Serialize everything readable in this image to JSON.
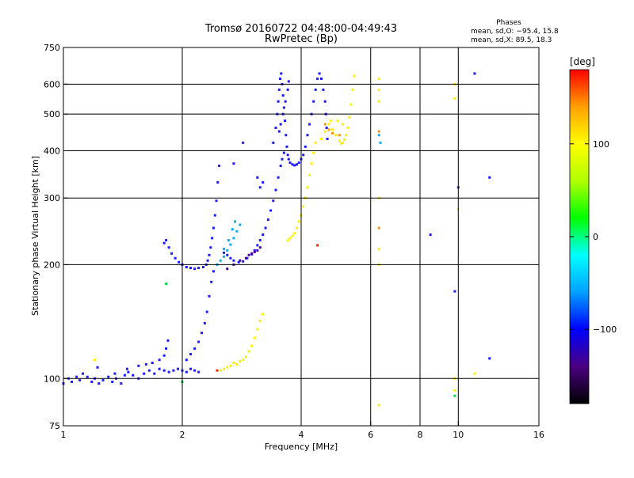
{
  "chart_data": {
    "type": "scatter",
    "title": "Tromsø 20160722 04:48:00-04:49:43",
    "subtitle": "RwPretec (Bp)",
    "xlabel": "Frequency [MHz]",
    "ylabel": "Stationary phase Virtual Height [km]",
    "x_scale": "log",
    "y_scale": "log",
    "xlim": [
      1,
      16
    ],
    "ylim": [
      75,
      750
    ],
    "x_ticks": [
      {
        "value": 1,
        "label": "1"
      },
      {
        "value": 2,
        "label": "2"
      },
      {
        "value": 4,
        "label": "4"
      },
      {
        "value": 6,
        "label": "6"
      },
      {
        "value": 8,
        "label": "8"
      },
      {
        "value": 10,
        "label": "10"
      },
      {
        "value": 16,
        "label": "16"
      }
    ],
    "y_ticks": [
      {
        "value": 75,
        "label": "75"
      },
      {
        "value": 100,
        "label": "100"
      },
      {
        "value": 200,
        "label": "200"
      },
      {
        "value": 300,
        "label": "300"
      },
      {
        "value": 400,
        "label": "400"
      },
      {
        "value": 500,
        "label": "500"
      },
      {
        "value": 600,
        "label": "600"
      },
      {
        "value": 750,
        "label": "750"
      }
    ],
    "grid_x": [
      2,
      4,
      6,
      8,
      10
    ],
    "grid_y": [
      100,
      200,
      300,
      400,
      500,
      600
    ],
    "grid": true,
    "info_panel": {
      "title": "Phases",
      "line1": "mean, sd,O: −95.4, 15.8",
      "line2": "mean, sd,X: 89.5, 18.3"
    },
    "colorbar": {
      "label": "[deg]",
      "range": [
        -180,
        180
      ],
      "ticks": [
        {
          "value": 100,
          "label": "100"
        },
        {
          "value": 0,
          "label": "0"
        },
        {
          "value": -100,
          "label": "−100"
        }
      ],
      "colors": [
        "#000000",
        "#4a0080",
        "#0000ff",
        "#00a0ff",
        "#00ffff",
        "#00ff00",
        "#b0ff00",
        "#ffff00",
        "#ffa000",
        "#ff0000"
      ]
    },
    "series": [
      {
        "color": "#1a1aff",
        "points": [
          [
            1.0,
            97
          ],
          [
            1.03,
            100
          ],
          [
            1.05,
            98
          ],
          [
            1.08,
            101
          ],
          [
            1.1,
            99
          ],
          [
            1.12,
            103
          ],
          [
            1.15,
            101
          ],
          [
            1.18,
            98
          ],
          [
            1.2,
            100
          ],
          [
            1.23,
            97
          ],
          [
            1.26,
            99
          ],
          [
            1.3,
            101
          ],
          [
            1.33,
            98
          ],
          [
            1.36,
            100
          ],
          [
            1.4,
            97
          ],
          [
            1.43,
            102
          ],
          [
            1.46,
            104
          ],
          [
            1.5,
            102
          ],
          [
            1.55,
            100
          ],
          [
            1.6,
            103
          ],
          [
            1.65,
            105
          ],
          [
            1.7,
            103
          ],
          [
            1.75,
            106
          ],
          [
            1.8,
            105
          ],
          [
            1.85,
            104
          ],
          [
            1.9,
            105
          ],
          [
            1.95,
            106
          ],
          [
            2.0,
            105
          ],
          [
            2.05,
            104
          ],
          [
            2.1,
            106
          ],
          [
            2.15,
            105
          ],
          [
            2.2,
            104
          ],
          [
            1.22,
            107
          ],
          [
            1.35,
            103
          ],
          [
            1.45,
            106
          ],
          [
            1.55,
            108
          ],
          [
            1.62,
            109
          ],
          [
            1.68,
            110
          ],
          [
            1.75,
            112
          ],
          [
            1.8,
            115
          ],
          [
            1.82,
            120
          ],
          [
            1.84,
            126
          ],
          [
            1.8,
            228
          ],
          [
            1.82,
            232
          ],
          [
            1.85,
            222
          ],
          [
            1.88,
            214
          ],
          [
            1.92,
            208
          ],
          [
            1.96,
            203
          ],
          [
            2.0,
            200
          ],
          [
            2.05,
            197
          ],
          [
            2.1,
            196
          ],
          [
            2.15,
            195
          ],
          [
            2.2,
            196
          ],
          [
            2.26,
            197
          ],
          [
            2.3,
            200
          ],
          [
            2.32,
            205
          ],
          [
            2.34,
            212
          ],
          [
            2.36,
            222
          ],
          [
            2.38,
            235
          ],
          [
            2.4,
            250
          ],
          [
            2.42,
            270
          ],
          [
            2.44,
            295
          ],
          [
            2.46,
            330
          ],
          [
            2.48,
            365
          ],
          [
            2.05,
            112
          ],
          [
            2.1,
            116
          ],
          [
            2.15,
            120
          ],
          [
            2.2,
            125
          ],
          [
            2.24,
            132
          ],
          [
            2.28,
            140
          ],
          [
            2.31,
            150
          ],
          [
            2.34,
            165
          ],
          [
            2.37,
            180
          ],
          [
            2.4,
            192
          ],
          [
            2.55,
            215
          ],
          [
            2.6,
            212
          ],
          [
            2.65,
            208
          ],
          [
            2.7,
            205
          ],
          [
            2.78,
            203
          ],
          [
            2.85,
            204
          ],
          [
            2.92,
            208
          ],
          [
            3.0,
            213
          ],
          [
            3.05,
            218
          ],
          [
            3.1,
            225
          ],
          [
            3.15,
            232
          ],
          [
            3.2,
            240
          ],
          [
            3.25,
            250
          ],
          [
            3.3,
            263
          ],
          [
            3.35,
            278
          ],
          [
            3.4,
            295
          ],
          [
            3.45,
            315
          ],
          [
            3.5,
            340
          ],
          [
            3.55,
            365
          ],
          [
            3.58,
            380
          ],
          [
            3.62,
            395
          ],
          [
            3.4,
            420
          ],
          [
            3.45,
            460
          ],
          [
            3.48,
            500
          ],
          [
            3.5,
            540
          ],
          [
            3.52,
            580
          ],
          [
            3.54,
            620
          ],
          [
            3.56,
            640
          ],
          [
            3.58,
            600
          ],
          [
            3.6,
            560
          ],
          [
            3.62,
            520
          ],
          [
            3.64,
            480
          ],
          [
            3.66,
            440
          ],
          [
            3.68,
            410
          ],
          [
            3.7,
            390
          ],
          [
            3.72,
            380
          ],
          [
            3.75,
            372
          ],
          [
            3.8,
            368
          ],
          [
            3.85,
            366
          ],
          [
            3.9,
            368
          ],
          [
            3.95,
            372
          ],
          [
            4.0,
            380
          ],
          [
            4.05,
            390
          ],
          [
            4.1,
            410
          ],
          [
            4.15,
            440
          ],
          [
            4.2,
            470
          ],
          [
            4.25,
            500
          ],
          [
            4.3,
            540
          ],
          [
            4.35,
            580
          ],
          [
            4.4,
            620
          ],
          [
            4.45,
            640
          ],
          [
            4.5,
            620
          ],
          [
            4.55,
            580
          ],
          [
            4.6,
            540
          ],
          [
            4.62,
            500
          ],
          [
            4.64,
            460
          ],
          [
            4.66,
            430
          ],
          [
            3.52,
            450
          ],
          [
            3.55,
            470
          ],
          [
            3.6,
            500
          ],
          [
            3.65,
            540
          ],
          [
            3.7,
            580
          ],
          [
            3.72,
            610
          ],
          [
            3.2,
            330
          ],
          [
            3.15,
            320
          ],
          [
            3.1,
            340
          ],
          [
            2.7,
            370
          ],
          [
            2.85,
            420
          ],
          [
            10.0,
            320
          ],
          [
            11.0,
            640
          ],
          [
            12.0,
            340
          ],
          [
            8.5,
            240
          ],
          [
            9.8,
            170
          ],
          [
            12.0,
            113
          ]
        ]
      },
      {
        "color": "#4a00a0",
        "points": [
          [
            2.6,
            195
          ],
          [
            2.7,
            200
          ],
          [
            2.8,
            205
          ],
          [
            2.9,
            208
          ],
          [
            2.95,
            212
          ],
          [
            3.0,
            214
          ],
          [
            3.05,
            216
          ],
          [
            3.1,
            218
          ],
          [
            3.15,
            222
          ]
        ]
      },
      {
        "color": "#00b0ff",
        "points": [
          [
            2.45,
            200
          ],
          [
            2.5,
            205
          ],
          [
            2.55,
            210
          ],
          [
            2.6,
            218
          ],
          [
            2.65,
            226
          ],
          [
            2.7,
            235
          ],
          [
            2.75,
            245
          ],
          [
            2.8,
            255
          ],
          [
            2.55,
            220
          ],
          [
            2.62,
            232
          ],
          [
            2.68,
            248
          ],
          [
            2.72,
            260
          ],
          [
            6.3,
            440
          ],
          [
            6.35,
            420
          ]
        ]
      },
      {
        "color": "#ffee00",
        "points": [
          [
            2.5,
            105
          ],
          [
            2.55,
            106
          ],
          [
            2.6,
            107
          ],
          [
            2.65,
            108
          ],
          [
            2.7,
            110
          ],
          [
            2.75,
            109
          ],
          [
            2.8,
            111
          ],
          [
            2.85,
            112
          ],
          [
            2.9,
            114
          ],
          [
            2.95,
            118
          ],
          [
            3.0,
            122
          ],
          [
            3.05,
            128
          ],
          [
            3.1,
            135
          ],
          [
            3.15,
            142
          ],
          [
            3.2,
            148
          ],
          [
            3.7,
            232
          ],
          [
            3.75,
            235
          ],
          [
            3.8,
            238
          ],
          [
            3.85,
            242
          ],
          [
            3.9,
            250
          ],
          [
            3.95,
            260
          ],
          [
            4.0,
            270
          ],
          [
            4.05,
            285
          ],
          [
            4.1,
            300
          ],
          [
            4.15,
            320
          ],
          [
            4.2,
            345
          ],
          [
            4.25,
            370
          ],
          [
            4.3,
            395
          ],
          [
            4.35,
            420
          ],
          [
            4.5,
            430
          ],
          [
            4.6,
            450
          ],
          [
            4.7,
            470
          ],
          [
            4.8,
            455
          ],
          [
            4.9,
            440
          ],
          [
            5.0,
            425
          ],
          [
            5.05,
            418
          ],
          [
            5.1,
            420
          ],
          [
            5.15,
            428
          ],
          [
            5.2,
            440
          ],
          [
            5.25,
            460
          ],
          [
            5.3,
            490
          ],
          [
            5.35,
            530
          ],
          [
            5.4,
            580
          ],
          [
            5.45,
            630
          ],
          [
            4.75,
            480
          ],
          [
            4.95,
            480
          ],
          [
            5.1,
            470
          ],
          [
            6.3,
            620
          ],
          [
            6.3,
            580
          ],
          [
            6.3,
            540
          ],
          [
            6.3,
            300
          ],
          [
            6.3,
            220
          ],
          [
            6.3,
            200
          ],
          [
            6.3,
            85
          ],
          [
            9.8,
            600
          ],
          [
            9.8,
            550
          ],
          [
            9.8,
            100
          ],
          [
            9.8,
            93
          ],
          [
            10.0,
            280
          ],
          [
            11.0,
            103
          ],
          [
            1.2,
            112
          ]
        ]
      },
      {
        "color": "#ff9000",
        "points": [
          [
            4.6,
            470
          ],
          [
            4.7,
            455
          ],
          [
            4.8,
            445
          ],
          [
            5.0,
            440
          ],
          [
            6.3,
            450
          ],
          [
            6.3,
            250
          ]
        ]
      },
      {
        "color": "#ff2000",
        "points": [
          [
            2.45,
            105
          ],
          [
            4.4,
            225
          ]
        ]
      },
      {
        "color": "#00dd44",
        "points": [
          [
            1.82,
            178
          ],
          [
            9.8,
            90
          ],
          [
            2.0,
            98
          ]
        ]
      }
    ]
  }
}
